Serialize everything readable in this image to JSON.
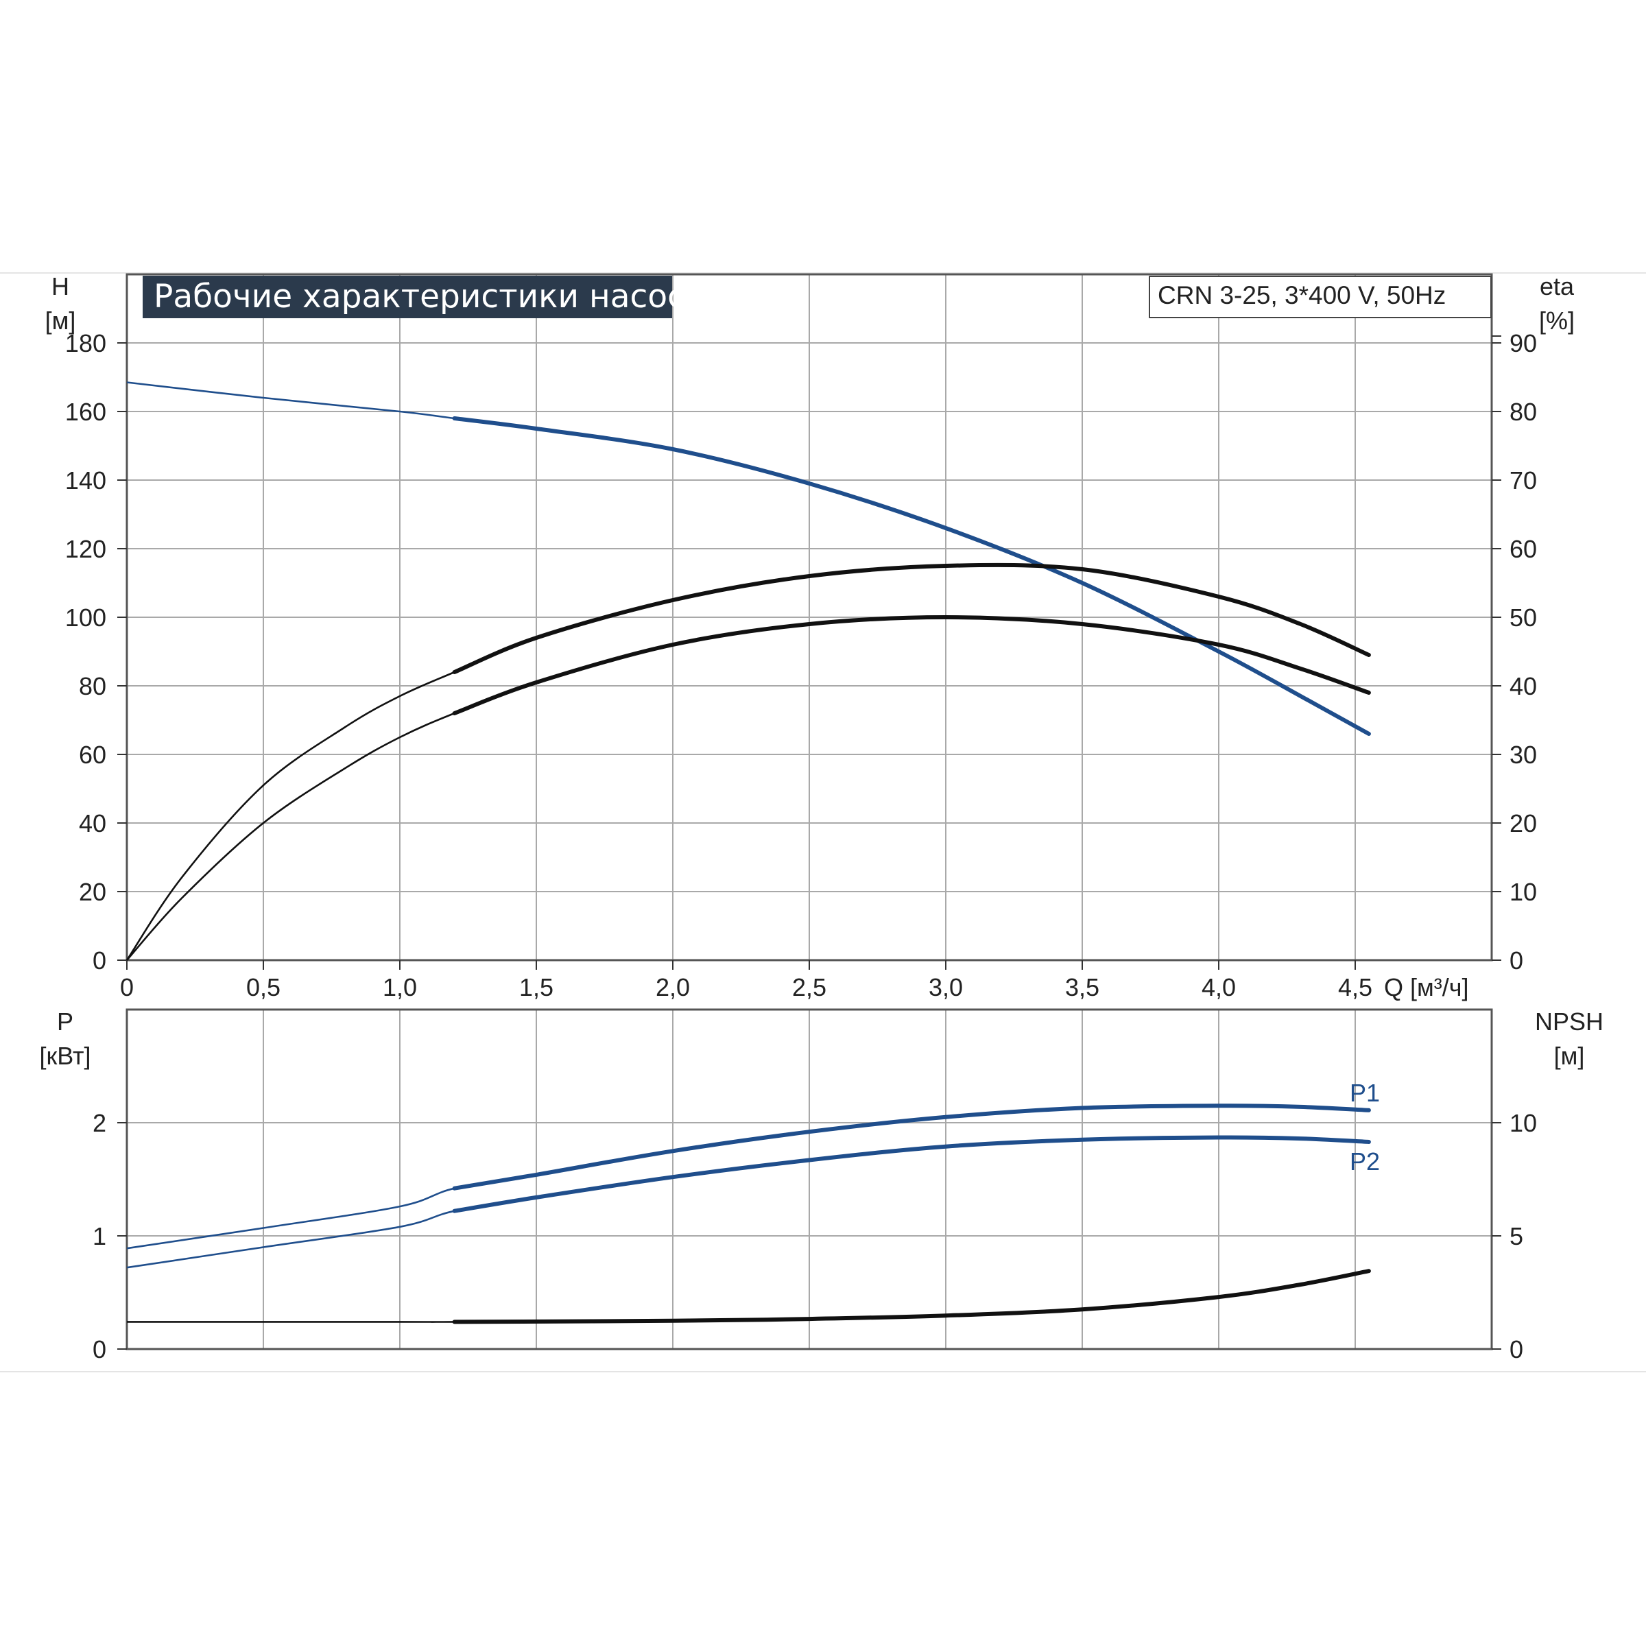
{
  "colors": {
    "blue": "#1f4e8c",
    "black": "#111111",
    "grid": "#a9a9a9",
    "frame": "#555555",
    "title_bg": "#2b3a4c"
  },
  "chart_data": [
    {
      "type": "line",
      "title": "Рабочие характеристики насоса",
      "model": "CRN 3-25, 3*400 V, 50Hz",
      "xlabel": "Q [м³/ч]",
      "xlim": [
        0,
        5.0
      ],
      "x_ticks": [
        "0",
        "0,5",
        "1,0",
        "1,5",
        "2,0",
        "2,5",
        "3,0",
        "3,5",
        "4,0",
        "4,5"
      ],
      "y_left": {
        "name": "H",
        "unit": "[м]",
        "range": [
          0,
          200
        ],
        "ticks": [
          "0",
          "20",
          "40",
          "60",
          "80",
          "100",
          "120",
          "140",
          "160",
          "180"
        ]
      },
      "y_right": {
        "name": "eta",
        "unit": "[%]",
        "range": [
          0,
          100
        ],
        "ticks": [
          "0",
          "10",
          "20",
          "30",
          "40",
          "50",
          "60",
          "70",
          "80",
          "90"
        ]
      },
      "grid": true,
      "series": [
        {
          "axis": "left",
          "color": "blue",
          "points": [
            [
              0,
              168.5
            ],
            [
              0.5,
              164
            ],
            [
              1.0,
              160
            ],
            [
              1.2,
              158
            ],
            [
              1.5,
              155
            ],
            [
              2.0,
              149
            ],
            [
              2.5,
              139
            ],
            [
              3.0,
              126
            ],
            [
              3.5,
              110
            ],
            [
              4.0,
              90
            ],
            [
              4.3,
              77
            ],
            [
              4.55,
              66
            ]
          ]
        },
        {
          "axis": "right",
          "color": "black",
          "points": [
            [
              0,
              0
            ],
            [
              0.2,
              12
            ],
            [
              0.5,
              25.5
            ],
            [
              0.8,
              34
            ],
            [
              1.0,
              38.5
            ],
            [
              1.2,
              42
            ],
            [
              1.5,
              47
            ],
            [
              2.0,
              52.5
            ],
            [
              2.5,
              56
            ],
            [
              3.0,
              57.5
            ],
            [
              3.5,
              57
            ],
            [
              4.0,
              53
            ],
            [
              4.3,
              49
            ],
            [
              4.55,
              44.5
            ]
          ]
        },
        {
          "axis": "right",
          "color": "black",
          "points": [
            [
              0,
              0
            ],
            [
              0.2,
              9
            ],
            [
              0.5,
              20
            ],
            [
              0.8,
              28
            ],
            [
              1.0,
              32.5
            ],
            [
              1.2,
              36
            ],
            [
              1.5,
              40.5
            ],
            [
              2.0,
              46
            ],
            [
              2.5,
              49
            ],
            [
              3.0,
              50
            ],
            [
              3.5,
              49
            ],
            [
              4.0,
              46
            ],
            [
              4.3,
              42.5
            ],
            [
              4.55,
              39
            ]
          ]
        }
      ]
    },
    {
      "type": "line",
      "xlim": [
        0,
        5.0
      ],
      "y_left": {
        "name": "P",
        "unit": "[кВт]",
        "range": [
          0,
          3
        ],
        "ticks": [
          "0",
          "1",
          "2"
        ]
      },
      "y_right": {
        "name": "NPSH",
        "unit": "[м]",
        "range": [
          0,
          15
        ],
        "ticks": [
          "0",
          "5",
          "10"
        ]
      },
      "grid": true,
      "series": [
        {
          "name": "P1",
          "axis": "left",
          "color": "blue",
          "points": [
            [
              0,
              0.89
            ],
            [
              0.5,
              1.07
            ],
            [
              1.0,
              1.26
            ],
            [
              1.2,
              1.42
            ],
            [
              1.5,
              1.54
            ],
            [
              2.0,
              1.75
            ],
            [
              2.5,
              1.92
            ],
            [
              3.0,
              2.05
            ],
            [
              3.5,
              2.13
            ],
            [
              4.0,
              2.15
            ],
            [
              4.3,
              2.14
            ],
            [
              4.55,
              2.11
            ]
          ]
        },
        {
          "name": "P2",
          "axis": "left",
          "color": "blue",
          "points": [
            [
              0,
              0.72
            ],
            [
              0.5,
              0.9
            ],
            [
              1.0,
              1.08
            ],
            [
              1.2,
              1.22
            ],
            [
              1.5,
              1.34
            ],
            [
              2.0,
              1.52
            ],
            [
              2.5,
              1.67
            ],
            [
              3.0,
              1.79
            ],
            [
              3.5,
              1.85
            ],
            [
              4.0,
              1.87
            ],
            [
              4.3,
              1.86
            ],
            [
              4.55,
              1.83
            ]
          ]
        },
        {
          "axis": "right",
          "color": "black",
          "points": [
            [
              0,
              1.2
            ],
            [
              1.0,
              1.2
            ],
            [
              1.2,
              1.2
            ],
            [
              2.0,
              1.25
            ],
            [
              2.5,
              1.33
            ],
            [
              3.0,
              1.48
            ],
            [
              3.5,
              1.75
            ],
            [
              4.0,
              2.3
            ],
            [
              4.3,
              2.85
            ],
            [
              4.55,
              3.45
            ]
          ]
        }
      ]
    }
  ]
}
